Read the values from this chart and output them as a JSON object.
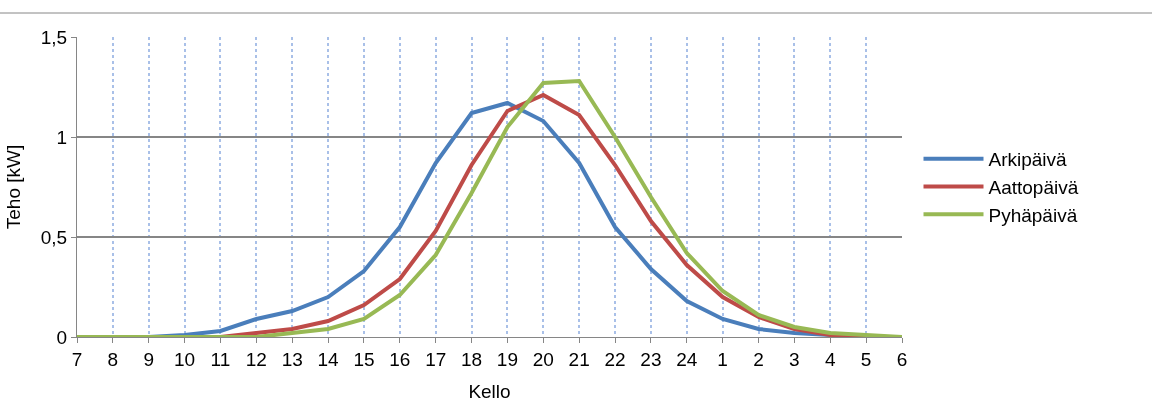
{
  "chart_data": {
    "type": "line",
    "xlabel": "Kello",
    "ylabel": "Teho [kW]",
    "categories": [
      "7",
      "8",
      "9",
      "10",
      "11",
      "12",
      "13",
      "14",
      "15",
      "16",
      "17",
      "18",
      "19",
      "20",
      "21",
      "22",
      "23",
      "24",
      "1",
      "2",
      "3",
      "4",
      "5",
      "6"
    ],
    "series": [
      {
        "name": "Arkipäivä",
        "color": "#4a7ebb",
        "values": [
          0,
          0,
          0,
          0.01,
          0.03,
          0.09,
          0.13,
          0.2,
          0.33,
          0.55,
          0.87,
          1.12,
          1.17,
          1.08,
          0.87,
          0.55,
          0.34,
          0.18,
          0.09,
          0.04,
          0.02,
          0.01,
          0,
          0
        ]
      },
      {
        "name": "Aattopäivä",
        "color": "#be4b48",
        "values": [
          null,
          null,
          null,
          0,
          0,
          0.02,
          0.04,
          0.08,
          0.16,
          0.29,
          0.53,
          0.86,
          1.13,
          1.21,
          1.11,
          0.86,
          0.58,
          0.36,
          0.2,
          0.1,
          0.04,
          0.01,
          0,
          0
        ]
      },
      {
        "name": "Pyhäpäivä",
        "color": "#98b954",
        "values": [
          0,
          0,
          0,
          0,
          0,
          0,
          0.02,
          0.04,
          0.09,
          0.21,
          0.41,
          0.72,
          1.05,
          1.27,
          1.28,
          1.0,
          0.7,
          0.42,
          0.23,
          0.11,
          0.05,
          0.02,
          0.01,
          0
        ]
      }
    ],
    "ylim": [
      0,
      1.5
    ],
    "yticks": [
      0,
      {
        "value": 0.5,
        "label": "0,5"
      },
      1,
      {
        "value": 1.5,
        "label": "1,5"
      }
    ],
    "grid": true,
    "legend": "right",
    "marker": "none",
    "line_style": "solid"
  }
}
